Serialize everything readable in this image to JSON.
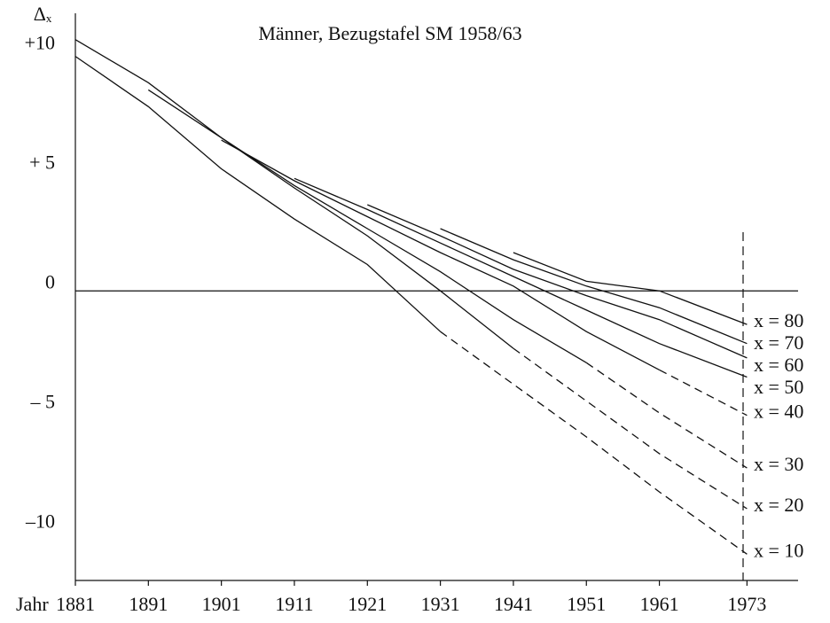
{
  "chart_data": {
    "type": "line",
    "title": "Männer, Bezugstafel SM 1958/63",
    "y_label": "Δₓ",
    "x_label": "Jahr",
    "x": [
      1881,
      1891,
      1901,
      1911,
      1921,
      1931,
      1941,
      1951,
      1961,
      1973
    ],
    "xlim": [
      1881,
      1980
    ],
    "ylim": [
      -12.1,
      11.6
    ],
    "xticks": [
      1881,
      1891,
      1901,
      1911,
      1921,
      1931,
      1941,
      1951,
      1961,
      1973
    ],
    "yticks": [
      {
        "value": 10,
        "label": "+10"
      },
      {
        "value": 5,
        "label": "+ 5"
      },
      0,
      {
        "value": -5,
        "label": "– 5"
      },
      {
        "value": -10,
        "label": "–10"
      }
    ],
    "series": [
      {
        "name": "x = 80",
        "color": "#111",
        "values": [
          null,
          null,
          null,
          null,
          null,
          null,
          1.6,
          0.4,
          0.0,
          -1.4
        ],
        "projected_values": [
          null,
          null,
          null,
          null,
          null,
          null,
          null,
          null,
          null,
          null
        ]
      },
      {
        "name": "x = 70",
        "color": "#111",
        "values": [
          null,
          null,
          null,
          null,
          null,
          2.6,
          1.3,
          0.2,
          -0.7,
          -2.2
        ],
        "projected_values": [
          null,
          null,
          null,
          null,
          null,
          null,
          null,
          null,
          null,
          null
        ]
      },
      {
        "name": "x = 60",
        "color": "#111",
        "values": [
          null,
          null,
          null,
          null,
          3.6,
          2.3,
          0.9,
          -0.2,
          -1.2,
          -2.8
        ],
        "projected_values": [
          null,
          null,
          null,
          null,
          null,
          null,
          null,
          null,
          null,
          null
        ]
      },
      {
        "name": "x = 50",
        "color": "#111",
        "values": [
          null,
          null,
          null,
          4.7,
          3.4,
          2.0,
          0.6,
          -0.8,
          -2.2,
          -3.6
        ],
        "projected_values": [
          null,
          null,
          null,
          null,
          null,
          null,
          null,
          null,
          null,
          null
        ]
      },
      {
        "name": "x = 40",
        "color": "#111",
        "values": [
          null,
          null,
          6.3,
          4.6,
          3.1,
          1.6,
          0.2,
          -1.7,
          -3.3,
          null
        ],
        "projected_values": [
          null,
          null,
          null,
          null,
          null,
          null,
          null,
          null,
          -3.3,
          -5.2
        ]
      },
      {
        "name": "x = 30",
        "color": "#111",
        "values": [
          null,
          8.4,
          6.4,
          4.4,
          2.6,
          0.8,
          -1.2,
          -3.0,
          null,
          null
        ],
        "projected_values": [
          null,
          null,
          null,
          null,
          null,
          null,
          null,
          -3.0,
          -5.1,
          -7.4
        ]
      },
      {
        "name": "x = 20",
        "color": "#111",
        "values": [
          10.5,
          8.7,
          6.4,
          4.3,
          2.3,
          0.0,
          -2.4,
          null,
          null,
          null
        ],
        "projected_values": [
          null,
          null,
          null,
          null,
          null,
          null,
          -2.4,
          -4.6,
          -6.8,
          -9.1
        ]
      },
      {
        "name": "x = 10",
        "color": "#111",
        "values": [
          9.8,
          7.7,
          5.1,
          3.0,
          1.1,
          -1.7,
          null,
          null,
          null,
          null
        ],
        "projected_values": [
          null,
          null,
          null,
          null,
          null,
          -1.7,
          -3.9,
          -6.1,
          -8.4,
          -11.0
        ]
      }
    ]
  }
}
